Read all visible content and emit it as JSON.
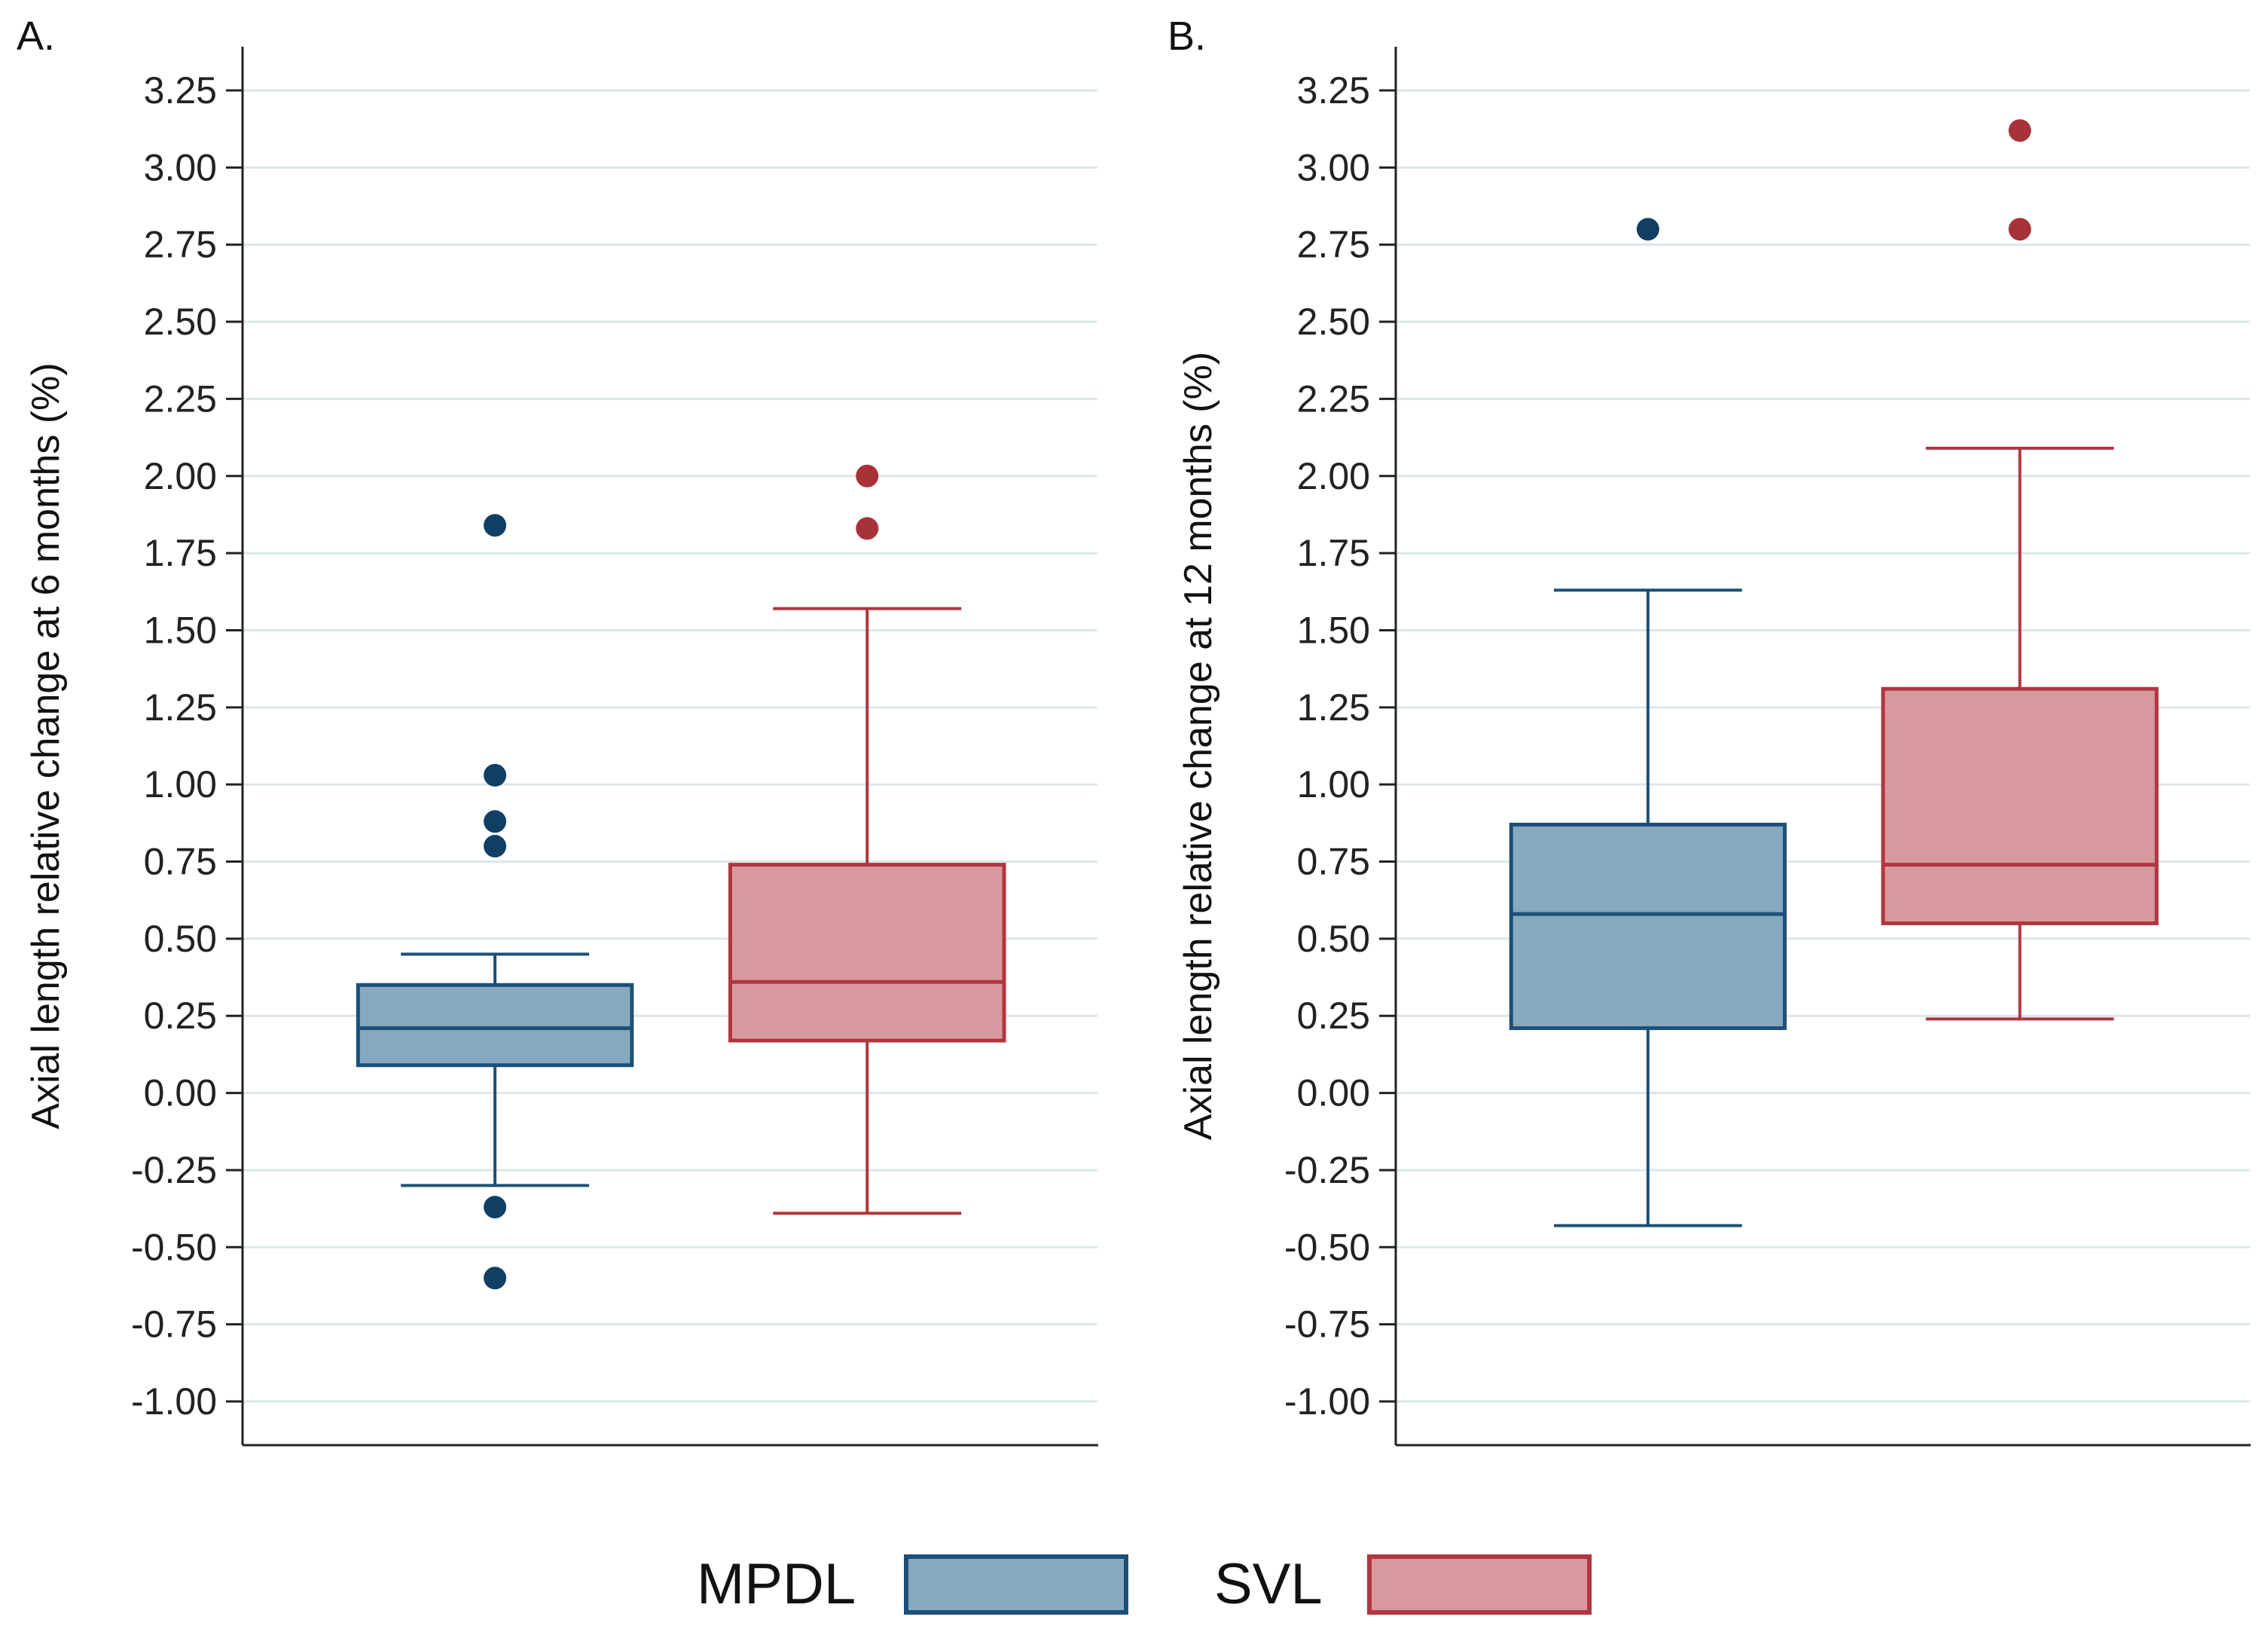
{
  "chart_data": [
    {
      "type": "box",
      "panel_label": "A.",
      "ylabel": "Axial length relative change at 6 months (%)",
      "ylim": [
        -1.0,
        3.25
      ],
      "yticks": [
        "3.25",
        "3.00",
        "2.75",
        "2.50",
        "2.25",
        "2.00",
        "1.75",
        "1.50",
        "1.25",
        "1.00",
        "0.75",
        "0.50",
        "0.25",
        "0.00",
        "-0.25",
        "-0.50",
        "-0.75",
        "-1.00"
      ],
      "ytick_values": [
        3.25,
        3.0,
        2.75,
        2.5,
        2.25,
        2.0,
        1.75,
        1.5,
        1.25,
        1.0,
        0.75,
        0.5,
        0.25,
        0.0,
        -0.25,
        -0.5,
        -0.75,
        -1.0
      ],
      "grid": true,
      "series": [
        {
          "name": "MPDL",
          "whisker_low": -0.3,
          "q1": 0.09,
          "median": 0.21,
          "q3": 0.35,
          "whisker_high": 0.45,
          "outliers": [
            1.84,
            1.03,
            0.88,
            0.8,
            -0.37,
            -0.6
          ]
        },
        {
          "name": "SVL",
          "whisker_low": -0.39,
          "q1": 0.17,
          "median": 0.36,
          "q3": 0.74,
          "whisker_high": 1.57,
          "outliers": [
            2.0,
            1.83
          ]
        }
      ]
    },
    {
      "type": "box",
      "panel_label": "B.",
      "ylabel": "Axial length relative change at 12 months (%)",
      "ylim": [
        -1.0,
        3.25
      ],
      "yticks": [
        "3.25",
        "3.00",
        "2.75",
        "2.50",
        "2.25",
        "2.00",
        "1.75",
        "1.50",
        "1.25",
        "1.00",
        "0.75",
        "0.50",
        "0.25",
        "0.00",
        "-0.25",
        "-0.50",
        "-0.75",
        "-1.00"
      ],
      "ytick_values": [
        3.25,
        3.0,
        2.75,
        2.5,
        2.25,
        2.0,
        1.75,
        1.5,
        1.25,
        1.0,
        0.75,
        0.5,
        0.25,
        0.0,
        -0.25,
        -0.5,
        -0.75,
        -1.0
      ],
      "grid": true,
      "series": [
        {
          "name": "MPDL",
          "whisker_low": -0.43,
          "q1": 0.21,
          "median": 0.58,
          "q3": 0.87,
          "whisker_high": 1.63,
          "outliers": [
            2.8
          ]
        },
        {
          "name": "SVL",
          "whisker_low": 0.24,
          "q1": 0.55,
          "median": 0.74,
          "q3": 1.31,
          "whisker_high": 2.09,
          "outliers": [
            3.12,
            2.8
          ]
        }
      ]
    }
  ],
  "legend": {
    "placement": "bottom-center",
    "items": [
      {
        "label": "MPDL",
        "fill": "#87a9bf",
        "stroke": "#1d5078"
      },
      {
        "label": "SVL",
        "fill": "#d8999e",
        "stroke": "#b0363f"
      }
    ]
  },
  "colors": {
    "MPDL": {
      "fill": "#87a9bf",
      "stroke": "#1d5078",
      "point": "#0f3f63"
    },
    "SVL": {
      "fill": "#d8999e",
      "stroke": "#b0363f",
      "point": "#a8323a"
    },
    "grid": "#dde6ea",
    "axis": "#222222"
  }
}
